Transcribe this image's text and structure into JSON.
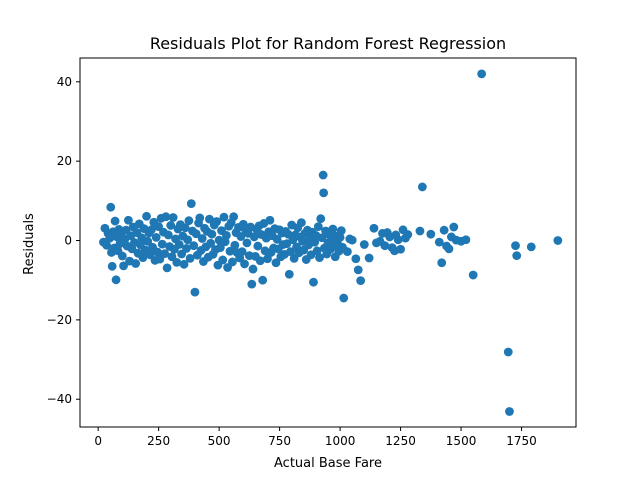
{
  "chart_data": {
    "type": "scatter",
    "title": "Residuals Plot for Random Forest Regression",
    "xlabel": "Actual Base Fare",
    "ylabel": "Residuals",
    "xlim": [
      -75,
      1975
    ],
    "ylim": [
      -47,
      46
    ],
    "xticks": [
      0,
      250,
      500,
      750,
      1000,
      1250,
      1500,
      1750
    ],
    "yticks": [
      -40,
      -20,
      0,
      20,
      40
    ],
    "grid": false,
    "legend": "none",
    "marker_color": "#1f77b4",
    "series": [
      {
        "points": [
          [
            22,
            -0.4
          ],
          [
            28,
            3.1
          ],
          [
            35,
            -1.2
          ],
          [
            41,
            1.8
          ],
          [
            48,
            0.6
          ],
          [
            52,
            8.4
          ],
          [
            55,
            -3.0
          ],
          [
            58,
            -6.5
          ],
          [
            62,
            2.2
          ],
          [
            66,
            -1.9
          ],
          [
            70,
            4.9
          ],
          [
            74,
            -9.9
          ],
          [
            78,
            0.9
          ],
          [
            82,
            -2.6
          ],
          [
            86,
            2.8
          ],
          [
            90,
            -0.8
          ],
          [
            95,
            1.5
          ],
          [
            100,
            -3.9
          ],
          [
            105,
            -6.4
          ],
          [
            110,
            0.3
          ],
          [
            115,
            2.6
          ],
          [
            120,
            -1.4
          ],
          [
            125,
            5.1
          ],
          [
            130,
            -5.2
          ],
          [
            135,
            1.2
          ],
          [
            140,
            -2.1
          ],
          [
            145,
            3.4
          ],
          [
            150,
            -0.5
          ],
          [
            155,
            -5.8
          ],
          [
            160,
            2.0
          ],
          [
            165,
            -3.2
          ],
          [
            170,
            4.2
          ],
          [
            175,
            -1.1
          ],
          [
            180,
            0.7
          ],
          [
            185,
            -4.3
          ],
          [
            190,
            3.0
          ],
          [
            195,
            -2.4
          ],
          [
            200,
            6.1
          ],
          [
            205,
            -0.2
          ],
          [
            210,
            1.9
          ],
          [
            215,
            -3.6
          ],
          [
            220,
            2.7
          ],
          [
            225,
            -1.7
          ],
          [
            230,
            4.6
          ],
          [
            235,
            -5.0
          ],
          [
            240,
            0.8
          ],
          [
            245,
            -2.9
          ],
          [
            250,
            3.5
          ],
          [
            255,
            -4.7
          ],
          [
            260,
            5.6
          ],
          [
            265,
            -0.9
          ],
          [
            270,
            2.1
          ],
          [
            275,
            -3.3
          ],
          [
            280,
            6.0
          ],
          [
            285,
            -6.9
          ],
          [
            290,
            1.4
          ],
          [
            295,
            -1.5
          ],
          [
            300,
            3.8
          ],
          [
            305,
            -4.1
          ],
          [
            310,
            5.8
          ],
          [
            315,
            -2.2
          ],
          [
            320,
            0.4
          ],
          [
            325,
            -5.5
          ],
          [
            330,
            2.9
          ],
          [
            335,
            -1.0
          ],
          [
            340,
            4.0
          ],
          [
            345,
            -3.4
          ],
          [
            350,
            1.1
          ],
          [
            355,
            -6.0
          ],
          [
            360,
            3.2
          ],
          [
            365,
            -2.0
          ],
          [
            370,
            0.2
          ],
          [
            375,
            5.0
          ],
          [
            380,
            -4.5
          ],
          [
            385,
            9.3
          ],
          [
            390,
            2.4
          ],
          [
            395,
            -1.3
          ],
          [
            400,
            -13.0
          ],
          [
            405,
            1.7
          ],
          [
            410,
            -3.7
          ],
          [
            415,
            4.4
          ],
          [
            420,
            5.7
          ],
          [
            425,
            -2.5
          ],
          [
            430,
            0.5
          ],
          [
            435,
            -5.3
          ],
          [
            440,
            3.1
          ],
          [
            445,
            -1.6
          ],
          [
            450,
            2.3
          ],
          [
            455,
            -4.2
          ],
          [
            460,
            5.4
          ],
          [
            465,
            -0.7
          ],
          [
            470,
            1.6
          ],
          [
            475,
            -3.5
          ],
          [
            480,
            3.9
          ],
          [
            485,
            -2.3
          ],
          [
            490,
            4.8
          ],
          [
            495,
            -6.2
          ],
          [
            500,
            0.1
          ],
          [
            505,
            -1.8
          ],
          [
            510,
            2.5
          ],
          [
            515,
            -4.9
          ],
          [
            520,
            5.9
          ],
          [
            525,
            -0.3
          ],
          [
            530,
            1.3
          ],
          [
            535,
            -6.8
          ],
          [
            540,
            3.6
          ],
          [
            545,
            -2.7
          ],
          [
            550,
            4.5
          ],
          [
            555,
            -5.4
          ],
          [
            560,
            6.0
          ],
          [
            565,
            -1.2
          ],
          [
            570,
            2.0
          ],
          [
            575,
            -3.1
          ],
          [
            580,
            3.3
          ],
          [
            585,
            -4.4
          ],
          [
            590,
            1.0
          ],
          [
            595,
            -2.8
          ],
          [
            600,
            4.1
          ],
          [
            605,
            -5.9
          ],
          [
            610,
            2.6
          ],
          [
            615,
            -0.6
          ],
          [
            620,
            1.8
          ],
          [
            625,
            -3.8
          ],
          [
            630,
            3.4
          ],
          [
            635,
            -11.0
          ],
          [
            640,
            -7.2
          ],
          [
            645,
            0.9
          ],
          [
            650,
            -4.0
          ],
          [
            655,
            2.8
          ],
          [
            660,
            -1.4
          ],
          [
            665,
            3.7
          ],
          [
            670,
            -5.1
          ],
          [
            675,
            1.5
          ],
          [
            680,
            -10.0
          ],
          [
            685,
            4.3
          ],
          [
            690,
            -2.6
          ],
          [
            695,
            0.6
          ],
          [
            700,
            -4.6
          ],
          [
            705,
            2.2
          ],
          [
            710,
            5.1
          ],
          [
            715,
            -3.0
          ],
          [
            720,
            1.2
          ],
          [
            725,
            -1.9
          ],
          [
            730,
            3.0
          ],
          [
            735,
            -5.6
          ],
          [
            740,
            0.3
          ],
          [
            745,
            -2.1
          ],
          [
            750,
            2.7
          ],
          [
            755,
            -4.1
          ],
          [
            760,
            1.9
          ],
          [
            765,
            -1.0
          ],
          [
            770,
            -3.5
          ],
          [
            775,
            2.3
          ],
          [
            780,
            -0.8
          ],
          [
            785,
            1.6
          ],
          [
            790,
            -8.5
          ],
          [
            795,
            -2.8
          ],
          [
            800,
            3.9
          ],
          [
            805,
            0.2
          ],
          [
            810,
            -4.5
          ],
          [
            815,
            1.4
          ],
          [
            820,
            -1.6
          ],
          [
            825,
            3.2
          ],
          [
            830,
            -3.1
          ],
          [
            835,
            0.9
          ],
          [
            840,
            4.5
          ],
          [
            845,
            -0.2
          ],
          [
            850,
            -2.4
          ],
          [
            855,
            1.8
          ],
          [
            860,
            -4.8
          ],
          [
            865,
            2.6
          ],
          [
            870,
            -1.1
          ],
          [
            875,
            0.5
          ],
          [
            880,
            -3.6
          ],
          [
            885,
            2.1
          ],
          [
            890,
            -10.5
          ],
          [
            895,
            -0.4
          ],
          [
            900,
            1.3
          ],
          [
            905,
            -2.6
          ],
          [
            910,
            3.5
          ],
          [
            915,
            -4.3
          ],
          [
            920,
            5.5
          ],
          [
            925,
            0.7
          ],
          [
            930,
            16.5
          ],
          [
            932,
            12.0
          ],
          [
            935,
            -1.9
          ],
          [
            940,
            2.4
          ],
          [
            945,
            -3.4
          ],
          [
            950,
            -0.6
          ],
          [
            955,
            1.5
          ],
          [
            960,
            -2.2
          ],
          [
            965,
            0.3
          ],
          [
            970,
            2.9
          ],
          [
            975,
            -1.3
          ],
          [
            980,
            -4.1
          ],
          [
            985,
            1.1
          ],
          [
            990,
            -0.9
          ],
          [
            995,
            -2.7
          ],
          [
            1000,
            0.8
          ],
          [
            1005,
            2.5
          ],
          [
            1010,
            -1.7
          ],
          [
            1015,
            -14.5
          ],
          [
            1030,
            -2.8
          ],
          [
            1040,
            0.4
          ],
          [
            1050,
            0.1
          ],
          [
            1065,
            -4.6
          ],
          [
            1075,
            -7.4
          ],
          [
            1085,
            -10.1
          ],
          [
            1100,
            -1.0
          ],
          [
            1120,
            -4.4
          ],
          [
            1140,
            3.1
          ],
          [
            1150,
            -0.6
          ],
          [
            1165,
            -0.2
          ],
          [
            1175,
            1.8
          ],
          [
            1185,
            -1.3
          ],
          [
            1195,
            2.0
          ],
          [
            1205,
            0.9
          ],
          [
            1215,
            -1.8
          ],
          [
            1225,
            -2.6
          ],
          [
            1230,
            1.4
          ],
          [
            1240,
            0.2
          ],
          [
            1250,
            -2.2
          ],
          [
            1260,
            2.7
          ],
          [
            1270,
            0.6
          ],
          [
            1280,
            1.5
          ],
          [
            1330,
            2.4
          ],
          [
            1340,
            13.5
          ],
          [
            1375,
            1.6
          ],
          [
            1410,
            -0.4
          ],
          [
            1420,
            -5.6
          ],
          [
            1430,
            2.6
          ],
          [
            1440,
            -1.4
          ],
          [
            1450,
            -2.1
          ],
          [
            1460,
            0.9
          ],
          [
            1470,
            3.4
          ],
          [
            1480,
            0.1
          ],
          [
            1500,
            -0.2
          ],
          [
            1520,
            0.2
          ],
          [
            1550,
            -8.7
          ],
          [
            1585,
            42.0
          ],
          [
            1695,
            -28.1
          ],
          [
            1700,
            -43.1
          ],
          [
            1725,
            -1.3
          ],
          [
            1730,
            -3.8
          ],
          [
            1790,
            -1.6
          ],
          [
            1900,
            0.0
          ]
        ]
      }
    ]
  }
}
